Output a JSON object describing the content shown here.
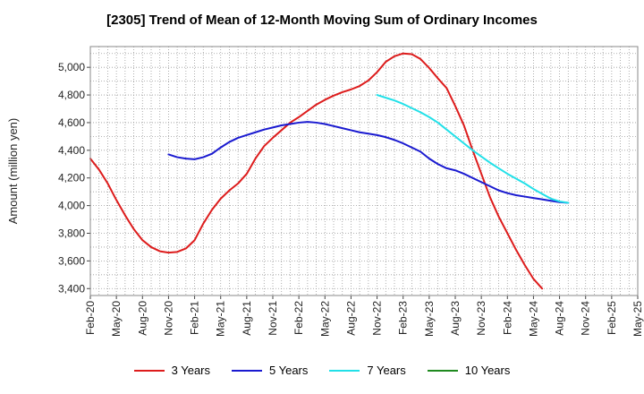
{
  "chart_data": {
    "type": "line",
    "title": "[2305]  Trend of Mean of 12-Month Moving Sum of Ordinary Incomes",
    "xlabel": "",
    "ylabel": "Amount (million yen)",
    "ylim": [
      3350,
      5150
    ],
    "yticks": [
      3400,
      3600,
      3800,
      4000,
      4200,
      4400,
      4600,
      4800,
      5000
    ],
    "ytick_labels": [
      "3,400",
      "3,600",
      "3,800",
      "4,000",
      "4,200",
      "4,400",
      "4,600",
      "4,800",
      "5,000"
    ],
    "x_start": "Feb-20",
    "x_end": "May-25",
    "x_tick_labels": [
      "Feb-20",
      "May-20",
      "Aug-20",
      "Nov-20",
      "Feb-21",
      "May-21",
      "Aug-21",
      "Nov-21",
      "Feb-22",
      "May-22",
      "Aug-22",
      "Nov-22",
      "Feb-23",
      "May-23",
      "Aug-23",
      "Nov-23",
      "Feb-24",
      "May-24",
      "Aug-24",
      "Nov-24",
      "Feb-25",
      "May-25"
    ],
    "grid": true,
    "legend_position": "bottom",
    "series": [
      {
        "name": "3 Years",
        "color": "#dd1c1c",
        "start_index": 0,
        "values": [
          4340,
          4260,
          4160,
          4040,
          3930,
          3830,
          3750,
          3700,
          3670,
          3660,
          3665,
          3690,
          3750,
          3870,
          3970,
          4050,
          4110,
          4160,
          4230,
          4340,
          4430,
          4490,
          4545,
          4600,
          4640,
          4685,
          4730,
          4765,
          4795,
          4820,
          4840,
          4865,
          4905,
          4965,
          5040,
          5080,
          5100,
          5095,
          5060,
          4995,
          4920,
          4850,
          4720,
          4580,
          4400,
          4230,
          4060,
          3920,
          3800,
          3680,
          3570,
          3470,
          3400
        ]
      },
      {
        "name": "5 Years",
        "color": "#1a1ad0",
        "start_index": 9,
        "values": [
          4370,
          4350,
          4340,
          4335,
          4350,
          4375,
          4420,
          4460,
          4490,
          4510,
          4530,
          4550,
          4565,
          4580,
          4590,
          4600,
          4605,
          4600,
          4590,
          4575,
          4560,
          4545,
          4530,
          4520,
          4510,
          4495,
          4475,
          4450,
          4420,
          4390,
          4340,
          4300,
          4270,
          4255,
          4230,
          4200,
          4170,
          4140,
          4110,
          4090,
          4075,
          4065,
          4055,
          4045,
          4035,
          4025,
          4020
        ]
      },
      {
        "name": "7 Years",
        "color": "#22e0e8",
        "start_index": 33,
        "values": [
          4800,
          4780,
          4760,
          4735,
          4705,
          4675,
          4640,
          4600,
          4550,
          4500,
          4450,
          4400,
          4355,
          4310,
          4270,
          4230,
          4195,
          4160,
          4120,
          4085,
          4050,
          4030,
          4020
        ]
      },
      {
        "name": "10 Years",
        "color": "#1f8a1f",
        "start_index": 0,
        "values": []
      }
    ]
  }
}
